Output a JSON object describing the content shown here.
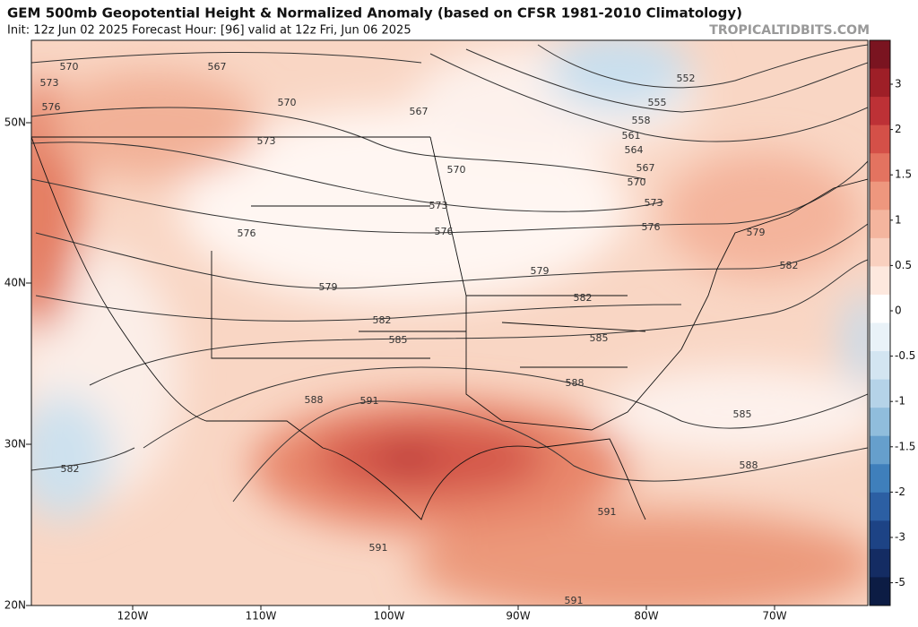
{
  "header": {
    "title": "GEM 500mb Geopotential Height & Normalized Anomaly (based on CFSR 1981-2010 Climatology)",
    "subtitle": "Init: 12z Jun 02 2025   Forecast Hour: [96]   valid at 12z Fri, Jun 06 2025",
    "watermark": "TROPICALTIDBITS.COM"
  },
  "axes": {
    "lat_labels": [
      "50N",
      "40N",
      "30N",
      "20N"
    ],
    "lon_labels": [
      "120W",
      "110W",
      "100W",
      "90W",
      "80W",
      "70W"
    ]
  },
  "colorbar": {
    "labels": [
      "3",
      "2",
      "1.5",
      "1",
      "0.5",
      "0",
      "-0.5",
      "-1",
      "-1.5",
      "-2",
      "-3",
      "-5"
    ]
  },
  "contour_labels": [
    "570",
    "573",
    "576",
    "567",
    "570",
    "573",
    "567",
    "552",
    "555",
    "558",
    "561",
    "564",
    "567",
    "570",
    "573",
    "576",
    "579",
    "582",
    "570",
    "573",
    "576",
    "576",
    "579",
    "579",
    "582",
    "582",
    "585",
    "585",
    "588",
    "591",
    "588",
    "585",
    "588",
    "591",
    "591",
    "591",
    "582"
  ]
}
